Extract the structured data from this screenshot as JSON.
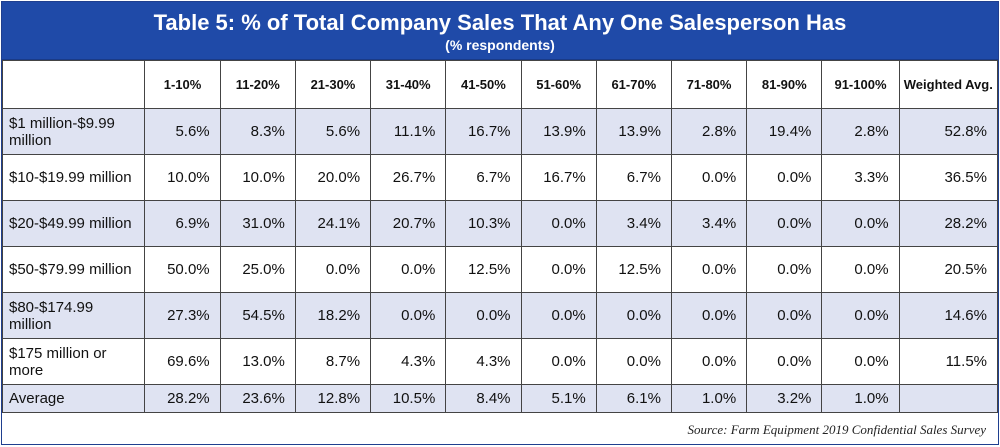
{
  "chart_data": {
    "type": "table",
    "title": "Table 5: % of Total Company Sales That Any One Salesperson Has",
    "subtitle": "(% respondents)",
    "columns": [
      "1-10%",
      "11-20%",
      "21-30%",
      "31-40%",
      "41-50%",
      "51-60%",
      "61-70%",
      "71-80%",
      "81-90%",
      "91-100%",
      "Weighted Avg."
    ],
    "rows": [
      {
        "label": "$1 million-$9.99 million",
        "values": [
          "5.6%",
          "8.3%",
          "5.6%",
          "11.1%",
          "16.7%",
          "13.9%",
          "13.9%",
          "2.8%",
          "19.4%",
          "2.8%",
          "52.8%"
        ]
      },
      {
        "label": "$10-$19.99 million",
        "values": [
          "10.0%",
          "10.0%",
          "20.0%",
          "26.7%",
          "6.7%",
          "16.7%",
          "6.7%",
          "0.0%",
          "0.0%",
          "3.3%",
          "36.5%"
        ]
      },
      {
        "label": "$20-$49.99 million",
        "values": [
          "6.9%",
          "31.0%",
          "24.1%",
          "20.7%",
          "10.3%",
          "0.0%",
          "3.4%",
          "3.4%",
          "0.0%",
          "0.0%",
          "28.2%"
        ]
      },
      {
        "label": "$50-$79.99 million",
        "values": [
          "50.0%",
          "25.0%",
          "0.0%",
          "0.0%",
          "12.5%",
          "0.0%",
          "12.5%",
          "0.0%",
          "0.0%",
          "0.0%",
          "20.5%"
        ]
      },
      {
        "label": "$80-$174.99 million",
        "values": [
          "27.3%",
          "54.5%",
          "18.2%",
          "0.0%",
          "0.0%",
          "0.0%",
          "0.0%",
          "0.0%",
          "0.0%",
          "0.0%",
          "14.6%"
        ]
      },
      {
        "label": "$175 million or more",
        "values": [
          "69.6%",
          "13.0%",
          "8.7%",
          "4.3%",
          "4.3%",
          "0.0%",
          "0.0%",
          "0.0%",
          "0.0%",
          "0.0%",
          "11.5%"
        ]
      },
      {
        "label": "Average",
        "values": [
          "28.2%",
          "23.6%",
          "12.8%",
          "10.5%",
          "8.4%",
          "5.1%",
          "6.1%",
          "1.0%",
          "3.2%",
          "1.0%",
          ""
        ]
      }
    ],
    "source": "Source: Farm Equipment 2019 Confidential Sales Survey"
  },
  "colors": {
    "header_bg": "#1f4aa8",
    "shaded_row": "#dfe3f2",
    "plain_row": "#ffffff"
  }
}
